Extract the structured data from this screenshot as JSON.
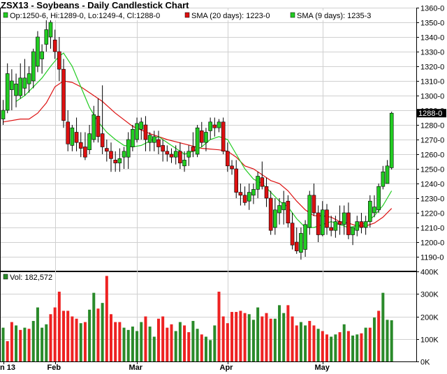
{
  "chart_data": {
    "type": "candlestick",
    "title": "ZSX13 - Soybeans - Daily Candlestick Chart",
    "legend": {
      "ohlc": "Op:1250-6, Hi:1289-0, Lo:1249-4, Cl:1288-0",
      "sma20": "SMA (20 days): 1223-0",
      "sma9": "SMA (9 days): 1235-3"
    },
    "colors": {
      "up": "#22cc22",
      "down": "#dd1111",
      "sma20": "#dd1111",
      "sma9": "#22cc22",
      "vol_up": "#2a8a2a",
      "vol_down": "#ee2222"
    },
    "price_axis": {
      "min": 1180,
      "max": 1360,
      "ticks": [
        "1190-0",
        "1200-0",
        "1210-0",
        "1220-0",
        "1230-0",
        "1240-0",
        "1250-0",
        "1260-0",
        "1270-0",
        "1280-0",
        "1290-0",
        "1300-0",
        "1310-0",
        "1320-0",
        "1330-0",
        "1340-0",
        "1350-0",
        "1360-0"
      ],
      "tick_values": [
        1190,
        1200,
        1210,
        1220,
        1230,
        1240,
        1250,
        1260,
        1270,
        1280,
        1290,
        1300,
        1310,
        1320,
        1330,
        1340,
        1350,
        1360
      ],
      "last_price_label": "1288-0",
      "last_price": 1288
    },
    "x_ticks": [
      {
        "label": "n 13",
        "index": 0
      },
      {
        "label": "Feb",
        "index": 12
      },
      {
        "label": "Mar",
        "index": 31
      },
      {
        "label": "Apr",
        "index": 52
      },
      {
        "label": "May",
        "index": 74
      }
    ],
    "volume": {
      "legend": "Vol: 182,572",
      "max": 400000,
      "ticks": [
        "0K",
        "100K",
        "200K",
        "300K",
        "400K"
      ],
      "tick_values": [
        0,
        100000,
        200000,
        300000,
        400000
      ]
    },
    "candles": [
      {
        "o": 1284,
        "h": 1297,
        "l": 1280,
        "c": 1290
      },
      {
        "o": 1290,
        "h": 1322,
        "l": 1288,
        "c": 1315
      },
      {
        "o": 1304,
        "h": 1318,
        "l": 1290,
        "c": 1310
      },
      {
        "o": 1300,
        "h": 1315,
        "l": 1292,
        "c": 1308
      },
      {
        "o": 1300,
        "h": 1322,
        "l": 1298,
        "c": 1312
      },
      {
        "o": 1305,
        "h": 1325,
        "l": 1300,
        "c": 1312
      },
      {
        "o": 1308,
        "h": 1320,
        "l": 1302,
        "c": 1315
      },
      {
        "o": 1310,
        "h": 1332,
        "l": 1305,
        "c": 1330
      },
      {
        "o": 1320,
        "h": 1344,
        "l": 1316,
        "c": 1340
      },
      {
        "o": 1325,
        "h": 1335,
        "l": 1315,
        "c": 1330
      },
      {
        "o": 1335,
        "h": 1352,
        "l": 1330,
        "c": 1345
      },
      {
        "o": 1340,
        "h": 1352,
        "l": 1332,
        "c": 1350
      },
      {
        "o": 1338,
        "h": 1345,
        "l": 1325,
        "c": 1330
      },
      {
        "o": 1330,
        "h": 1340,
        "l": 1310,
        "c": 1318
      },
      {
        "o": 1318,
        "h": 1325,
        "l": 1278,
        "c": 1283
      },
      {
        "o": 1282,
        "h": 1290,
        "l": 1262,
        "c": 1267
      },
      {
        "o": 1266,
        "h": 1280,
        "l": 1262,
        "c": 1278
      },
      {
        "o": 1275,
        "h": 1285,
        "l": 1262,
        "c": 1268
      },
      {
        "o": 1268,
        "h": 1275,
        "l": 1258,
        "c": 1264
      },
      {
        "o": 1265,
        "h": 1275,
        "l": 1256,
        "c": 1258
      },
      {
        "o": 1263,
        "h": 1280,
        "l": 1260,
        "c": 1274
      },
      {
        "o": 1270,
        "h": 1293,
        "l": 1268,
        "c": 1287
      },
      {
        "o": 1286,
        "h": 1298,
        "l": 1268,
        "c": 1272
      },
      {
        "o": 1274,
        "h": 1307,
        "l": 1260,
        "c": 1265
      },
      {
        "o": 1264,
        "h": 1270,
        "l": 1255,
        "c": 1262
      },
      {
        "o": 1262,
        "h": 1268,
        "l": 1248,
        "c": 1257
      },
      {
        "o": 1256,
        "h": 1262,
        "l": 1248,
        "c": 1254
      },
      {
        "o": 1254,
        "h": 1264,
        "l": 1248,
        "c": 1257
      },
      {
        "o": 1258,
        "h": 1265,
        "l": 1250,
        "c": 1262
      },
      {
        "o": 1258,
        "h": 1275,
        "l": 1250,
        "c": 1270
      },
      {
        "o": 1265,
        "h": 1280,
        "l": 1262,
        "c": 1277
      },
      {
        "o": 1270,
        "h": 1285,
        "l": 1268,
        "c": 1281
      },
      {
        "o": 1277,
        "h": 1285,
        "l": 1270,
        "c": 1282
      },
      {
        "o": 1280,
        "h": 1286,
        "l": 1262,
        "c": 1270
      },
      {
        "o": 1268,
        "h": 1275,
        "l": 1262,
        "c": 1273
      },
      {
        "o": 1268,
        "h": 1276,
        "l": 1262,
        "c": 1272
      },
      {
        "o": 1270,
        "h": 1276,
        "l": 1260,
        "c": 1265
      },
      {
        "o": 1266,
        "h": 1270,
        "l": 1255,
        "c": 1262
      },
      {
        "o": 1262,
        "h": 1266,
        "l": 1255,
        "c": 1260
      },
      {
        "o": 1260,
        "h": 1264,
        "l": 1254,
        "c": 1258
      },
      {
        "o": 1258,
        "h": 1266,
        "l": 1253,
        "c": 1262
      },
      {
        "o": 1262,
        "h": 1268,
        "l": 1250,
        "c": 1254
      },
      {
        "o": 1252,
        "h": 1262,
        "l": 1248,
        "c": 1256
      },
      {
        "o": 1258,
        "h": 1266,
        "l": 1252,
        "c": 1262
      },
      {
        "o": 1265,
        "h": 1275,
        "l": 1258,
        "c": 1262
      },
      {
        "o": 1260,
        "h": 1280,
        "l": 1258,
        "c": 1278
      },
      {
        "o": 1276,
        "h": 1282,
        "l": 1265,
        "c": 1268
      },
      {
        "o": 1268,
        "h": 1278,
        "l": 1262,
        "c": 1275
      },
      {
        "o": 1276,
        "h": 1285,
        "l": 1270,
        "c": 1282
      },
      {
        "o": 1280,
        "h": 1285,
        "l": 1272,
        "c": 1278
      },
      {
        "o": 1278,
        "h": 1284,
        "l": 1275,
        "c": 1282
      },
      {
        "o": 1282,
        "h": 1285,
        "l": 1260,
        "c": 1262
      },
      {
        "o": 1262,
        "h": 1268,
        "l": 1248,
        "c": 1252
      },
      {
        "o": 1252,
        "h": 1256,
        "l": 1246,
        "c": 1250
      },
      {
        "o": 1250,
        "h": 1256,
        "l": 1230,
        "c": 1234
      },
      {
        "o": 1234,
        "h": 1240,
        "l": 1225,
        "c": 1232
      },
      {
        "o": 1232,
        "h": 1238,
        "l": 1225,
        "c": 1227
      },
      {
        "o": 1228,
        "h": 1240,
        "l": 1222,
        "c": 1234
      },
      {
        "o": 1232,
        "h": 1240,
        "l": 1226,
        "c": 1236
      },
      {
        "o": 1236,
        "h": 1248,
        "l": 1230,
        "c": 1245
      },
      {
        "o": 1244,
        "h": 1255,
        "l": 1236,
        "c": 1238
      },
      {
        "o": 1238,
        "h": 1244,
        "l": 1224,
        "c": 1230
      },
      {
        "o": 1230,
        "h": 1235,
        "l": 1205,
        "c": 1208
      },
      {
        "o": 1210,
        "h": 1230,
        "l": 1205,
        "c": 1222
      },
      {
        "o": 1220,
        "h": 1230,
        "l": 1212,
        "c": 1225
      },
      {
        "o": 1222,
        "h": 1235,
        "l": 1212,
        "c": 1227
      },
      {
        "o": 1228,
        "h": 1232,
        "l": 1210,
        "c": 1213
      },
      {
        "o": 1213,
        "h": 1220,
        "l": 1195,
        "c": 1198
      },
      {
        "o": 1200,
        "h": 1210,
        "l": 1192,
        "c": 1194
      },
      {
        "o": 1193,
        "h": 1210,
        "l": 1188,
        "c": 1206
      },
      {
        "o": 1195,
        "h": 1215,
        "l": 1190,
        "c": 1212
      },
      {
        "o": 1210,
        "h": 1235,
        "l": 1205,
        "c": 1232
      },
      {
        "o": 1232,
        "h": 1240,
        "l": 1218,
        "c": 1220
      },
      {
        "o": 1220,
        "h": 1225,
        "l": 1200,
        "c": 1205
      },
      {
        "o": 1205,
        "h": 1228,
        "l": 1204,
        "c": 1222
      },
      {
        "o": 1222,
        "h": 1226,
        "l": 1205,
        "c": 1210
      },
      {
        "o": 1210,
        "h": 1218,
        "l": 1204,
        "c": 1208
      },
      {
        "o": 1208,
        "h": 1218,
        "l": 1203,
        "c": 1214
      },
      {
        "o": 1214,
        "h": 1225,
        "l": 1205,
        "c": 1212
      },
      {
        "o": 1212,
        "h": 1225,
        "l": 1205,
        "c": 1220
      },
      {
        "o": 1220,
        "h": 1227,
        "l": 1202,
        "c": 1205
      },
      {
        "o": 1205,
        "h": 1210,
        "l": 1198,
        "c": 1210
      },
      {
        "o": 1208,
        "h": 1218,
        "l": 1204,
        "c": 1214
      },
      {
        "o": 1214,
        "h": 1220,
        "l": 1206,
        "c": 1210
      },
      {
        "o": 1210,
        "h": 1218,
        "l": 1205,
        "c": 1214
      },
      {
        "o": 1214,
        "h": 1232,
        "l": 1210,
        "c": 1228
      },
      {
        "o": 1220,
        "h": 1232,
        "l": 1217,
        "c": 1224
      },
      {
        "o": 1222,
        "h": 1240,
        "l": 1220,
        "c": 1238
      },
      {
        "o": 1238,
        "h": 1252,
        "l": 1236,
        "c": 1248
      },
      {
        "o": 1240,
        "h": 1256,
        "l": 1240,
        "c": 1252
      },
      {
        "o": 1250.75,
        "h": 1289,
        "l": 1249.5,
        "c": 1288
      }
    ],
    "sma20": [
      [
        0,
        1282
      ],
      [
        4,
        1284
      ],
      [
        6,
        1284
      ],
      [
        8,
        1288
      ],
      [
        10,
        1295
      ],
      [
        12,
        1306
      ],
      [
        14,
        1310
      ],
      [
        16,
        1309
      ],
      [
        18,
        1306
      ],
      [
        20,
        1302
      ],
      [
        23,
        1296
      ],
      [
        26,
        1288
      ],
      [
        30,
        1279
      ],
      [
        34,
        1274
      ],
      [
        38,
        1270
      ],
      [
        42,
        1267
      ],
      [
        46,
        1264
      ],
      [
        50,
        1263
      ],
      [
        52,
        1262
      ],
      [
        54,
        1258
      ],
      [
        56,
        1252
      ],
      [
        58,
        1250
      ],
      [
        60,
        1246
      ],
      [
        62,
        1242
      ],
      [
        64,
        1240
      ],
      [
        66,
        1235
      ],
      [
        68,
        1228
      ],
      [
        70,
        1222
      ],
      [
        72,
        1218
      ],
      [
        74,
        1218
      ],
      [
        76,
        1217
      ],
      [
        78,
        1214
      ],
      [
        80,
        1213
      ],
      [
        82,
        1211
      ],
      [
        84,
        1211
      ],
      [
        86,
        1213
      ],
      [
        88,
        1217
      ],
      [
        90,
        1223
      ]
    ],
    "sma9": [
      [
        3,
        1296
      ],
      [
        5,
        1300
      ],
      [
        7,
        1306
      ],
      [
        9,
        1312
      ],
      [
        11,
        1320
      ],
      [
        13,
        1327
      ],
      [
        14,
        1329
      ],
      [
        16,
        1320
      ],
      [
        18,
        1306
      ],
      [
        20,
        1292
      ],
      [
        22,
        1282
      ],
      [
        24,
        1275
      ],
      [
        26,
        1270
      ],
      [
        28,
        1266
      ],
      [
        30,
        1265
      ],
      [
        32,
        1266
      ],
      [
        34,
        1269
      ],
      [
        36,
        1272
      ],
      [
        38,
        1268
      ],
      [
        40,
        1264
      ],
      [
        42,
        1260
      ],
      [
        44,
        1262
      ],
      [
        46,
        1265
      ],
      [
        48,
        1270
      ],
      [
        50,
        1272
      ],
      [
        52,
        1270
      ],
      [
        54,
        1260
      ],
      [
        56,
        1250
      ],
      [
        58,
        1243
      ],
      [
        60,
        1240
      ],
      [
        62,
        1234
      ],
      [
        64,
        1228
      ],
      [
        66,
        1224
      ],
      [
        68,
        1216
      ],
      [
        70,
        1210
      ],
      [
        72,
        1210
      ],
      [
        74,
        1212
      ],
      [
        76,
        1214
      ],
      [
        78,
        1212
      ],
      [
        80,
        1210
      ],
      [
        82,
        1211
      ],
      [
        84,
        1213
      ],
      [
        86,
        1218
      ],
      [
        88,
        1225
      ],
      [
        90,
        1235
      ]
    ],
    "volumes": [
      {
        "v": 150000,
        "up": true
      },
      {
        "v": 90000,
        "up": false
      },
      {
        "v": 175000,
        "up": false
      },
      {
        "v": 160000,
        "up": true
      },
      {
        "v": 140000,
        "up": false
      },
      {
        "v": 150000,
        "up": true
      },
      {
        "v": 145000,
        "up": false
      },
      {
        "v": 180000,
        "up": true
      },
      {
        "v": 240000,
        "up": true
      },
      {
        "v": 150000,
        "up": true
      },
      {
        "v": 165000,
        "up": true
      },
      {
        "v": 210000,
        "up": false
      },
      {
        "v": 240000,
        "up": false
      },
      {
        "v": 310000,
        "up": false
      },
      {
        "v": 225000,
        "up": false
      },
      {
        "v": 225000,
        "up": false
      },
      {
        "v": 200000,
        "up": false
      },
      {
        "v": 190000,
        "up": false
      },
      {
        "v": 170000,
        "up": true
      },
      {
        "v": 175000,
        "up": false
      },
      {
        "v": 230000,
        "up": true
      },
      {
        "v": 305000,
        "up": true
      },
      {
        "v": 235000,
        "up": false
      },
      {
        "v": 260000,
        "up": true
      },
      {
        "v": 380000,
        "up": false
      },
      {
        "v": 210000,
        "up": false
      },
      {
        "v": 175000,
        "up": false
      },
      {
        "v": 175000,
        "up": false
      },
      {
        "v": 150000,
        "up": true
      },
      {
        "v": 140000,
        "up": true
      },
      {
        "v": 155000,
        "up": true
      },
      {
        "v": 135000,
        "up": true
      },
      {
        "v": 175000,
        "up": true
      },
      {
        "v": 200000,
        "up": false
      },
      {
        "v": 155000,
        "up": true
      },
      {
        "v": 110000,
        "up": true
      },
      {
        "v": 190000,
        "up": false
      },
      {
        "v": 200000,
        "up": false
      },
      {
        "v": 150000,
        "up": false
      },
      {
        "v": 165000,
        "up": false
      },
      {
        "v": 135000,
        "up": true
      },
      {
        "v": 175000,
        "up": true
      },
      {
        "v": 160000,
        "up": false
      },
      {
        "v": 130000,
        "up": false
      },
      {
        "v": 180000,
        "up": true
      },
      {
        "v": 145000,
        "up": true
      },
      {
        "v": 120000,
        "up": false
      },
      {
        "v": 110000,
        "up": true
      },
      {
        "v": 95000,
        "up": true
      },
      {
        "v": 160000,
        "up": true
      },
      {
        "v": 310000,
        "up": false
      },
      {
        "v": 200000,
        "up": false
      },
      {
        "v": 170000,
        "up": false
      },
      {
        "v": 220000,
        "up": false
      },
      {
        "v": 220000,
        "up": false
      },
      {
        "v": 225000,
        "up": false
      },
      {
        "v": 215000,
        "up": false
      },
      {
        "v": 210000,
        "up": true
      },
      {
        "v": 185000,
        "up": true
      },
      {
        "v": 240000,
        "up": true
      },
      {
        "v": 200000,
        "up": false
      },
      {
        "v": 215000,
        "up": false
      },
      {
        "v": 190000,
        "up": false
      },
      {
        "v": 190000,
        "up": true
      },
      {
        "v": 250000,
        "up": true
      },
      {
        "v": 215000,
        "up": true
      },
      {
        "v": 250000,
        "up": false
      },
      {
        "v": 200000,
        "up": false
      },
      {
        "v": 160000,
        "up": false
      },
      {
        "v": 175000,
        "up": true
      },
      {
        "v": 160000,
        "up": true
      },
      {
        "v": 180000,
        "up": false
      },
      {
        "v": 160000,
        "up": false
      },
      {
        "v": 145000,
        "up": true
      },
      {
        "v": 135000,
        "up": false
      },
      {
        "v": 120000,
        "up": false
      },
      {
        "v": 110000,
        "up": true
      },
      {
        "v": 120000,
        "up": true
      },
      {
        "v": 130000,
        "up": false
      },
      {
        "v": 165000,
        "up": true
      },
      {
        "v": 135000,
        "up": false
      },
      {
        "v": 115000,
        "up": true
      },
      {
        "v": 120000,
        "up": true
      },
      {
        "v": 125000,
        "up": false
      },
      {
        "v": 150000,
        "up": true
      },
      {
        "v": 150000,
        "up": false
      },
      {
        "v": 195000,
        "up": true
      },
      {
        "v": 225000,
        "up": false
      },
      {
        "v": 305000,
        "up": true
      },
      {
        "v": 185000,
        "up": true
      },
      {
        "v": 183000,
        "up": true
      }
    ]
  }
}
